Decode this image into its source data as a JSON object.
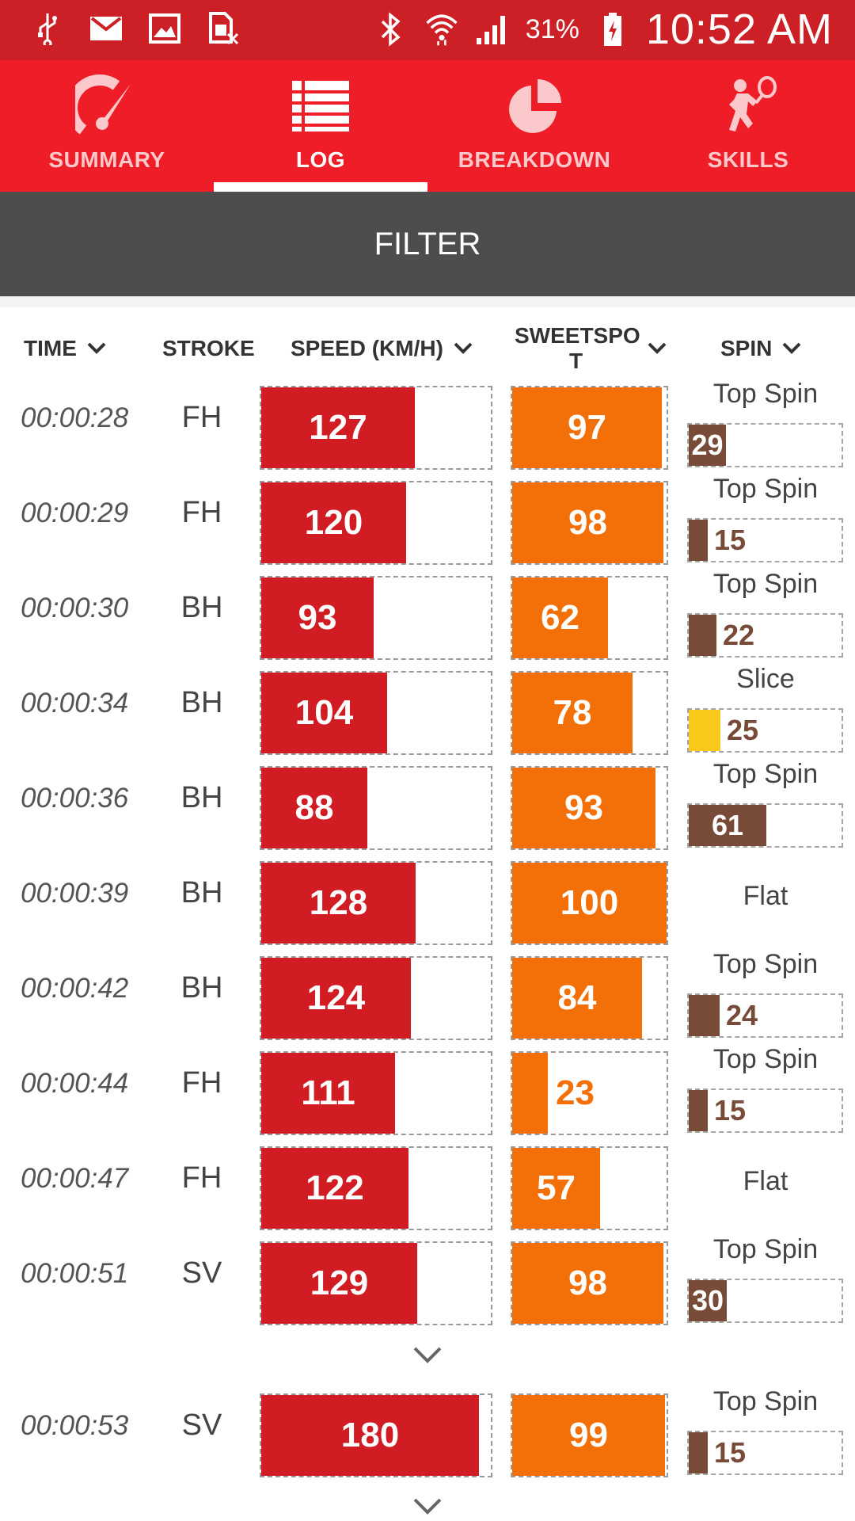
{
  "status_bar": {
    "icons": [
      "usb-icon",
      "gmail-icon",
      "image-icon",
      "sim-off-icon",
      "bluetooth-icon",
      "wifi-icon",
      "signal-icon",
      "battery-charging-icon"
    ],
    "battery": "31%",
    "time": "10:52 AM"
  },
  "tabs": [
    {
      "label": "SUMMARY",
      "icon": "gauge-icon",
      "active": false
    },
    {
      "label": "LOG",
      "icon": "list-icon",
      "active": true
    },
    {
      "label": "BREAKDOWN",
      "icon": "pie-chart-icon",
      "active": false
    },
    {
      "label": "SKILLS",
      "icon": "tennis-player-icon",
      "active": false
    }
  ],
  "filter": {
    "label": "FILTER"
  },
  "columns": {
    "time": "TIME",
    "stroke": "STROKE",
    "speed": "SPEED (KM/H)",
    "sweetspot_line1": "SWEETSPO",
    "sweetspot_line2": "T",
    "spin": "SPIN"
  },
  "colors": {
    "speed_bar": "#d11c23",
    "sweetspot_bar": "#f37008",
    "topspin_bar": "#774b37",
    "slice_bar": "#f8c91b",
    "header_red": "#ee1d27",
    "filter_gray": "#4d4d4d"
  },
  "rows": [
    {
      "time": "00:00:28",
      "stroke": "FH",
      "speed": 127,
      "sweetspot": 97,
      "spin_type": "Top Spin",
      "spin": 29
    },
    {
      "time": "00:00:29",
      "stroke": "FH",
      "speed": 120,
      "sweetspot": 98,
      "spin_type": "Top Spin",
      "spin": 15
    },
    {
      "time": "00:00:30",
      "stroke": "BH",
      "speed": 93,
      "sweetspot": 62,
      "spin_type": "Top Spin",
      "spin": 22
    },
    {
      "time": "00:00:34",
      "stroke": "BH",
      "speed": 104,
      "sweetspot": 78,
      "spin_type": "Slice",
      "spin": 25
    },
    {
      "time": "00:00:36",
      "stroke": "BH",
      "speed": 88,
      "sweetspot": 93,
      "spin_type": "Top Spin",
      "spin": 61
    },
    {
      "time": "00:00:39",
      "stroke": "BH",
      "speed": 128,
      "sweetspot": 100,
      "spin_type": "Flat",
      "spin": null
    },
    {
      "time": "00:00:42",
      "stroke": "BH",
      "speed": 124,
      "sweetspot": 84,
      "spin_type": "Top Spin",
      "spin": 24
    },
    {
      "time": "00:00:44",
      "stroke": "FH",
      "speed": 111,
      "sweetspot": 23,
      "spin_type": "Top Spin",
      "spin": 15
    },
    {
      "time": "00:00:47",
      "stroke": "FH",
      "speed": 122,
      "sweetspot": 57,
      "spin_type": "Flat",
      "spin": null
    },
    {
      "time": "00:00:51",
      "stroke": "SV",
      "speed": 129,
      "sweetspot": 98,
      "spin_type": "Top Spin",
      "spin": 30
    },
    {
      "time": "00:00:53",
      "stroke": "SV",
      "speed": 180,
      "sweetspot": 99,
      "spin_type": "Top Spin",
      "spin": 15
    }
  ],
  "scales": {
    "speed_max": 190,
    "sweetspot_max": 100,
    "spin_max": 120
  }
}
